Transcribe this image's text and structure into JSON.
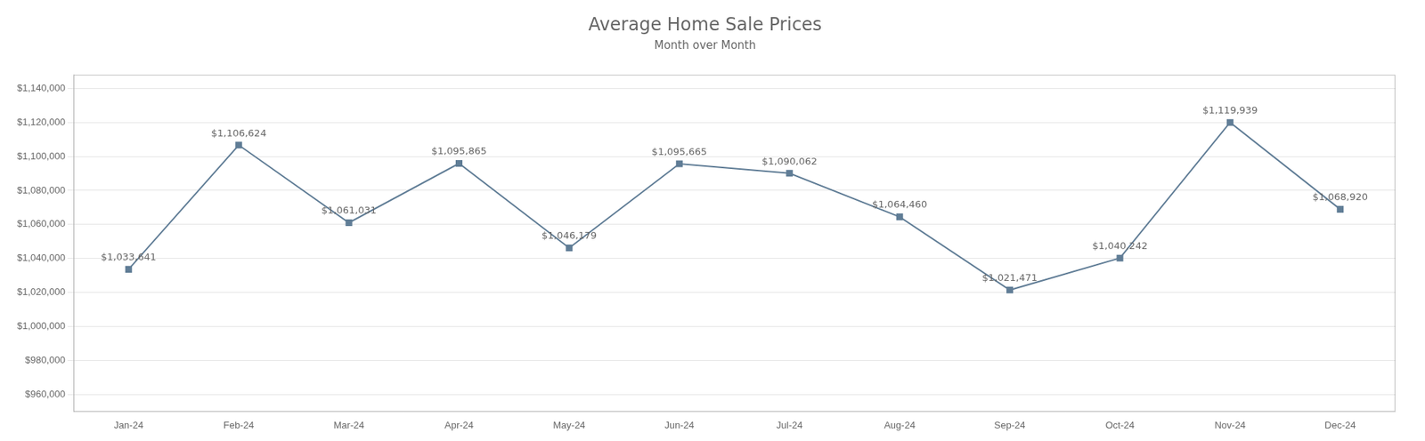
{
  "chart_data": {
    "type": "line",
    "title": "Average Home Sale Prices",
    "subtitle": "Month over Month",
    "categories": [
      "Jan-24",
      "Feb-24",
      "Mar-24",
      "Apr-24",
      "May-24",
      "Jun-24",
      "Jul-24",
      "Aug-24",
      "Sep-24",
      "Oct-24",
      "Nov-24",
      "Dec-24"
    ],
    "values": [
      1033641,
      1106624,
      1061031,
      1095865,
      1046179,
      1095665,
      1090062,
      1064460,
      1021471,
      1040242,
      1119939,
      1068920
    ],
    "value_labels": [
      "$1,033,641",
      "$1,106,624",
      "$1,061,031",
      "$1,095,865",
      "$1,046,179",
      "$1,095,665",
      "$1,090,062",
      "$1,064,460",
      "$1,021,471",
      "$1,040,242",
      "$1,119,939",
      "$1,068,920"
    ],
    "data_labels": true,
    "color": "#607d96",
    "marker": "square",
    "ylim": [
      950000,
      1148000
    ],
    "yticks": [
      {
        "value": 960000,
        "label": "$960,000"
      },
      {
        "value": 980000,
        "label": "$980,000"
      },
      {
        "value": 1000000,
        "label": "$1,000,000"
      },
      {
        "value": 1020000,
        "label": "$1,020,000"
      },
      {
        "value": 1040000,
        "label": "$1,040,000"
      },
      {
        "value": 1060000,
        "label": "$1,060,000"
      },
      {
        "value": 1080000,
        "label": "$1,080,000"
      },
      {
        "value": 1100000,
        "label": "$1,100,000"
      },
      {
        "value": 1120000,
        "label": "$1,120,000"
      },
      {
        "value": 1140000,
        "label": "$1,140,000"
      }
    ],
    "grid": true
  }
}
